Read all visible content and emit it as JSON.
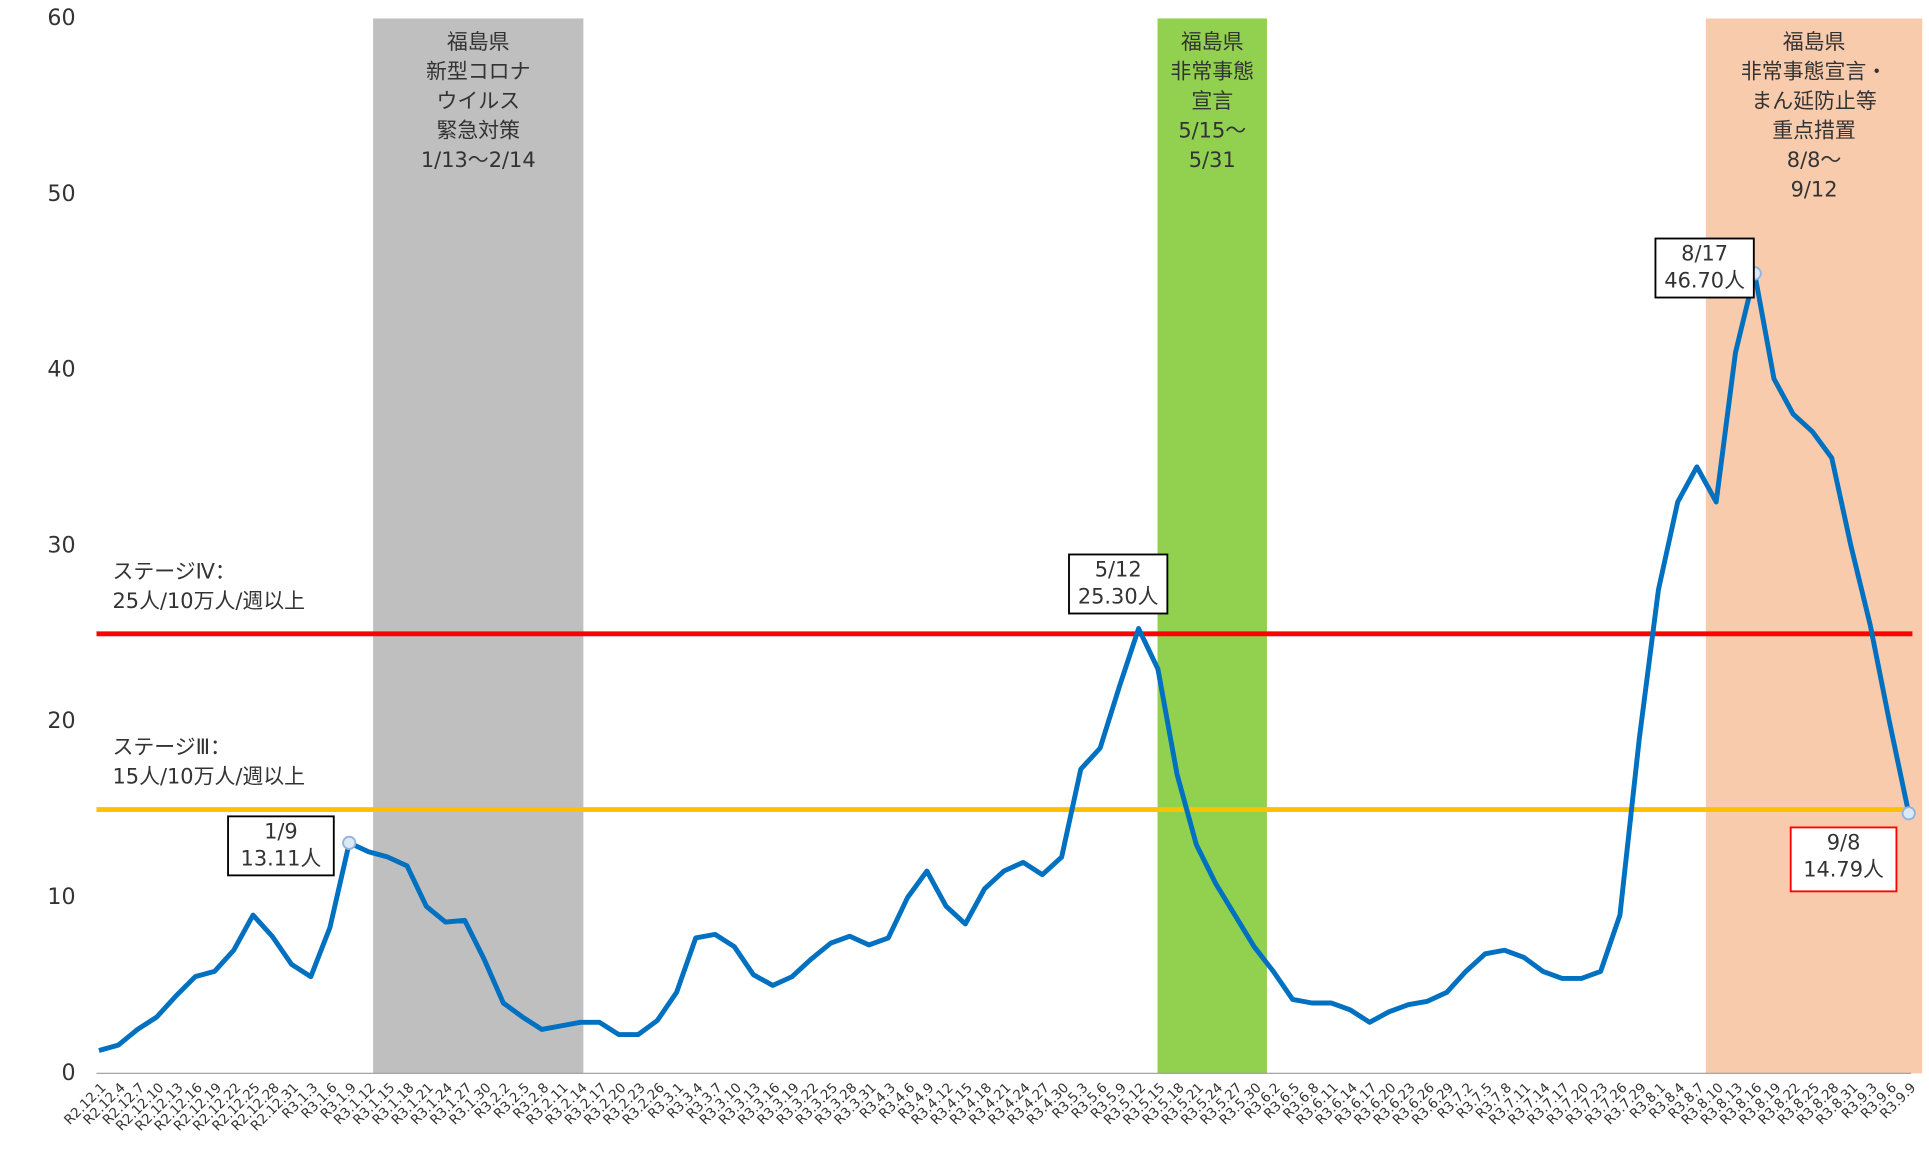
{
  "chart_data": {
    "type": "line",
    "categories": [
      "R2.12.1",
      "R2.12.4",
      "R2.12.7",
      "R2.12.10",
      "R2.12.13",
      "R2.12.16",
      "R2.12.19",
      "R2.12.22",
      "R2.12.25",
      "R2.12.28",
      "R2.12.31",
      "R3.1.3",
      "R3.1.6",
      "R3.1.9",
      "R3.1.12",
      "R3.1.15",
      "R3.1.18",
      "R3.1.21",
      "R3.1.24",
      "R3.1.27",
      "R3.1.30",
      "R3.2.2",
      "R3.2.5",
      "R3.2.8",
      "R3.2.11",
      "R3.2.14",
      "R3.2.17",
      "R3.2.20",
      "R3.2.23",
      "R3.2.26",
      "R3.3.1",
      "R3.3.4",
      "R3.3.7",
      "R3.3.10",
      "R3.3.13",
      "R3.3.16",
      "R3.3.19",
      "R3.3.22",
      "R3.3.25",
      "R3.3.28",
      "R3.3.31",
      "R3.4.3",
      "R3.4.6",
      "R3.4.9",
      "R3.4.12",
      "R3.4.15",
      "R3.4.18",
      "R3.4.21",
      "R3.4.24",
      "R3.4.27",
      "R3.4.30",
      "R3.5.3",
      "R3.5.6",
      "R3.5.9",
      "R3.5.12",
      "R3.5.15",
      "R3.5.18",
      "R3.5.21",
      "R3.5.24",
      "R3.5.27",
      "R3.5.30",
      "R3.6.2",
      "R3.6.5",
      "R3.6.8",
      "R3.6.11",
      "R3.6.14",
      "R3.6.17",
      "R3.6.20",
      "R3.6.23",
      "R3.6.26",
      "R3.6.29",
      "R3.7.2",
      "R3.7.5",
      "R3.7.8",
      "R3.7.11",
      "R3.7.14",
      "R3.7.17",
      "R3.7.20",
      "R3.7.23",
      "R3.7.26",
      "R3.7.29",
      "R3.8.1",
      "R3.8.4",
      "R3.8.7",
      "R3.8.10",
      "R3.8.13",
      "R3.8.16",
      "R3.8.19",
      "R3.8.22",
      "R3.8.25",
      "R3.8.28",
      "R3.8.31",
      "R3.9.3",
      "R3.9.6",
      "R3.9.9"
    ],
    "series": [
      {
        "color": "#0070c0",
        "values": [
          1.3,
          1.6,
          2.5,
          3.2,
          4.4,
          5.5,
          5.8,
          7.0,
          9.0,
          7.8,
          6.2,
          5.5,
          8.3,
          13.11,
          12.6,
          12.3,
          11.8,
          9.5,
          8.6,
          8.7,
          6.5,
          4.0,
          3.2,
          2.5,
          2.7,
          2.9,
          2.9,
          2.2,
          2.2,
          3.0,
          4.6,
          7.7,
          7.9,
          7.2,
          5.6,
          5.0,
          5.5,
          6.5,
          7.4,
          7.8,
          7.3,
          7.7,
          10.0,
          11.5,
          9.5,
          8.5,
          10.5,
          11.5,
          12.0,
          11.3,
          12.3,
          17.3,
          18.5,
          22.0,
          25.3,
          23.0,
          17.0,
          13.0,
          10.8,
          9.0,
          7.2,
          5.8,
          4.2,
          4.0,
          4.0,
          3.6,
          2.9,
          3.5,
          3.9,
          4.1,
          4.6,
          5.8,
          6.8,
          7.0,
          6.6,
          5.8,
          5.4,
          5.4,
          5.8,
          9.0,
          19.0,
          27.5,
          32.5,
          34.5,
          32.5,
          41.0,
          45.5,
          39.5,
          37.5,
          36.5,
          35.0,
          30.0,
          25.5,
          20.0,
          14.79
        ]
      }
    ],
    "ylim": [
      0,
      60
    ],
    "yticks": [
      0,
      10,
      20,
      30,
      40,
      50,
      60
    ],
    "grid": false,
    "reference_lines": [
      {
        "value": 25,
        "color": "#ff0000",
        "label": [
          "ステージⅣ：",
          "25人/10万人/週以上"
        ]
      },
      {
        "value": 15,
        "color": "#ffc000",
        "label": [
          "ステージⅢ：",
          "15人/10万人/週以上"
        ]
      }
    ],
    "bands": [
      {
        "color": "#bfbfbf",
        "label": [
          "福島県",
          "新型コロナ",
          "ウイルス",
          "緊急対策",
          "1/13～2/14"
        ]
      },
      {
        "color": "#92d050",
        "label": [
          "福島県",
          "非常事態",
          "宣言",
          "5/15～",
          "5/31"
        ]
      },
      {
        "color": "#f8cbad",
        "label": [
          "福島県",
          "非常事態宣言・",
          "まん延防止等",
          "重点措置",
          "8/8～",
          "9/12"
        ]
      }
    ],
    "annotations": [
      {
        "text": [
          "1/9",
          "13.11人"
        ],
        "color": "#000000"
      },
      {
        "text": [
          "5/12",
          "25.30人"
        ],
        "color": "#000000"
      },
      {
        "text": [
          "8/17",
          "46.70人"
        ],
        "color": "#000000"
      },
      {
        "text": [
          "9/8",
          "14.79人"
        ],
        "color": "#ff0000"
      }
    ]
  }
}
